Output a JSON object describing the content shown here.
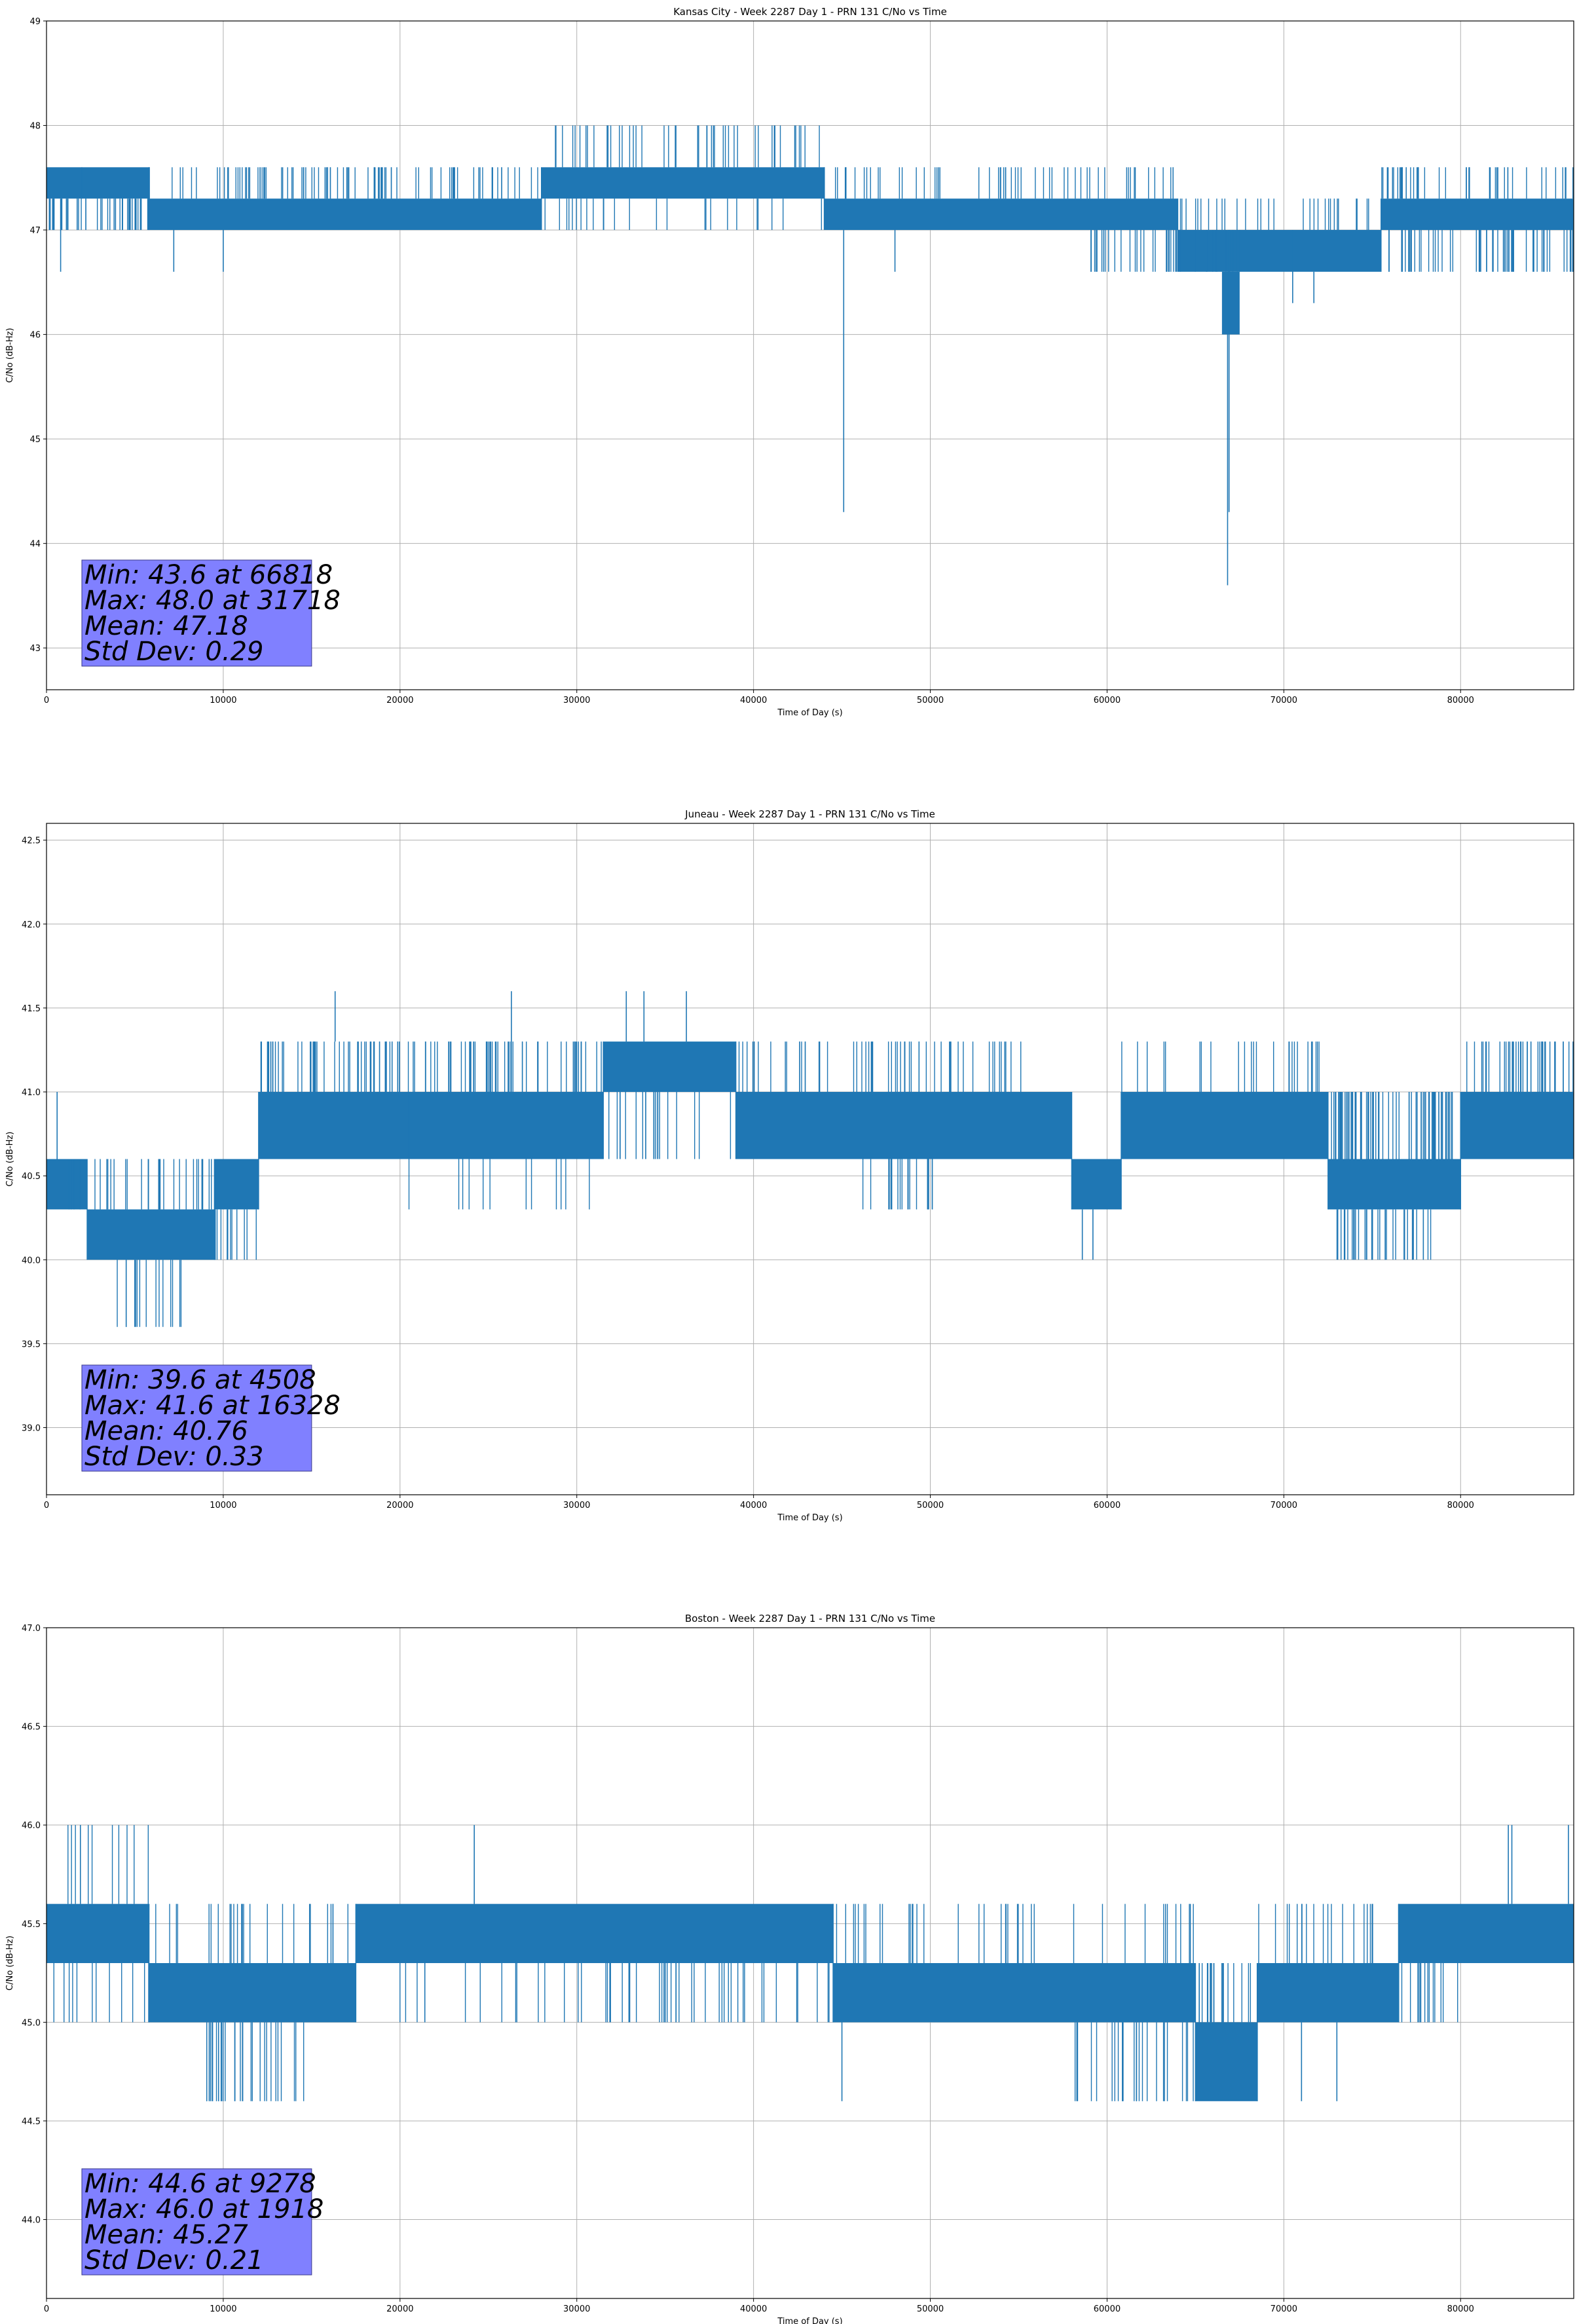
{
  "colors": {
    "series": "#1f77b4",
    "grid": "#b0b0b0",
    "stats_box": "#8080ff"
  },
  "chart_data": [
    {
      "type": "line",
      "title": "Kansas City - Week 2287 Day 1 - PRN 131 C/No vs Time",
      "xlabel": "Time of Day (s)",
      "ylabel": "C/No (dB-Hz)",
      "xlim": [
        0,
        86400
      ],
      "ylim": [
        42.6,
        49.0
      ],
      "xticks": [
        0,
        10000,
        20000,
        30000,
        40000,
        50000,
        60000,
        70000,
        80000
      ],
      "xtick_labels": [
        "0",
        "10000",
        "20000",
        "30000",
        "40000",
        "50000",
        "60000",
        "70000",
        "80000"
      ],
      "yticks": [
        43,
        44,
        45,
        46,
        47,
        48,
        49
      ],
      "ytick_labels": [
        "43",
        "44",
        "45",
        "46",
        "47",
        "48",
        "49"
      ],
      "grid": true,
      "stats_lines": [
        "Min: 43.6 at 66818",
        "Max: 48.0 at 31718",
        "Mean: 47.18",
        "Std Dev: 0.29"
      ],
      "series": [
        {
          "bands": [
            {
              "x": [
                0,
                2000
              ],
              "y": [
                47.3,
                47.6
              ]
            },
            {
              "x": [
                2000,
                5800
              ],
              "y": [
                47.3,
                47.6
              ]
            },
            {
              "x": [
                5800,
                28000
              ],
              "y": [
                47.0,
                47.3
              ]
            },
            {
              "x": [
                28000,
                44000
              ],
              "y": [
                47.3,
                47.6
              ]
            },
            {
              "x": [
                44000,
                64000
              ],
              "y": [
                47.0,
                47.3
              ]
            },
            {
              "x": [
                64000,
                67500
              ],
              "y": [
                46.6,
                47.0
              ]
            },
            {
              "x": [
                67500,
                75500
              ],
              "y": [
                46.6,
                47.0
              ]
            },
            {
              "x": [
                75500,
                86400
              ],
              "y": [
                47.0,
                47.3
              ]
            }
          ],
          "spikes": [
            {
              "x": [
                0,
                5800
              ],
              "from": 47.3,
              "to": 47.0,
              "count": 45
            },
            {
              "x": [
                5800,
                28000
              ],
              "from": 47.3,
              "to": 47.6,
              "count": 90
            },
            {
              "x": [
                28000,
                44000
              ],
              "from": 47.6,
              "to": 48.0,
              "count": 45
            },
            {
              "x": [
                28000,
                44000
              ],
              "from": 47.3,
              "to": 47.0,
              "count": 25
            },
            {
              "x": [
                44000,
                64000
              ],
              "from": 47.3,
              "to": 47.6,
              "count": 55
            },
            {
              "x": [
                59000,
                67500
              ],
              "from": 47.0,
              "to": 46.6,
              "count": 40
            },
            {
              "x": [
                64000,
                75500
              ],
              "from": 47.0,
              "to": 47.3,
              "count": 30
            },
            {
              "x": [
                75500,
                86400
              ],
              "from": 47.0,
              "to": 46.6,
              "count": 55
            },
            {
              "x": [
                75500,
                86400
              ],
              "from": 47.3,
              "to": 47.6,
              "count": 45
            }
          ],
          "points": [
            {
              "x": 800,
              "from": 47.3,
              "to": 46.6
            },
            {
              "x": 7200,
              "from": 47.0,
              "to": 46.6
            },
            {
              "x": 10000,
              "from": 47.0,
              "to": 46.6
            },
            {
              "x": 45100,
              "from": 47.0,
              "to": 44.3
            },
            {
              "x": 48000,
              "from": 47.0,
              "to": 46.6
            },
            {
              "x": 66818,
              "from": 46.6,
              "to": 43.6
            },
            {
              "x": 66900,
              "from": 46.3,
              "to": 44.3
            },
            {
              "x": 70500,
              "from": 47.0,
              "to": 46.3
            },
            {
              "x": 71700,
              "from": 46.6,
              "to": 46.3
            },
            {
              "x": 84100,
              "from": 47.0,
              "to": 46.6
            },
            {
              "x": 31718,
              "from": 47.6,
              "to": 48.0
            }
          ]
        }
      ],
      "extra_bands": [
        {
          "x": [
            66500,
            67500
          ],
          "y": [
            46.0,
            46.6
          ]
        }
      ]
    },
    {
      "type": "line",
      "title": "Juneau - Week 2287 Day 1 - PRN 131 C/No vs Time",
      "xlabel": "Time of Day (s)",
      "ylabel": "C/No (dB-Hz)",
      "xlim": [
        0,
        86400
      ],
      "ylim": [
        38.6,
        42.6
      ],
      "xticks": [
        0,
        10000,
        20000,
        30000,
        40000,
        50000,
        60000,
        70000,
        80000
      ],
      "xtick_labels": [
        "0",
        "10000",
        "20000",
        "30000",
        "40000",
        "50000",
        "60000",
        "70000",
        "80000"
      ],
      "yticks": [
        39.0,
        39.5,
        40.0,
        40.5,
        41.0,
        41.5,
        42.0,
        42.5
      ],
      "ytick_labels": [
        "39.0",
        "39.5",
        "40.0",
        "40.5",
        "41.0",
        "41.5",
        "42.0",
        "42.5"
      ],
      "grid": true,
      "stats_lines": [
        "Min: 39.6 at 4508",
        "Max: 41.6 at 16328",
        "Mean: 40.76",
        "Std Dev: 0.33"
      ],
      "series": [
        {
          "bands": [
            {
              "x": [
                0,
                2300
              ],
              "y": [
                40.3,
                40.6
              ]
            },
            {
              "x": [
                2300,
                9500
              ],
              "y": [
                40.0,
                40.3
              ]
            },
            {
              "x": [
                9500,
                12000
              ],
              "y": [
                40.3,
                40.6
              ]
            },
            {
              "x": [
                12000,
                20500
              ],
              "y": [
                40.6,
                41.0
              ]
            },
            {
              "x": [
                20500,
                26000
              ],
              "y": [
                40.6,
                41.0
              ]
            },
            {
              "x": [
                26000,
                31500
              ],
              "y": [
                40.6,
                41.0
              ]
            },
            {
              "x": [
                31500,
                39000
              ],
              "y": [
                41.0,
                41.3
              ]
            },
            {
              "x": [
                39000,
                58000
              ],
              "y": [
                40.6,
                41.0
              ]
            },
            {
              "x": [
                58000,
                60800
              ],
              "y": [
                40.3,
                40.6
              ]
            },
            {
              "x": [
                60800,
                72500
              ],
              "y": [
                40.6,
                41.0
              ]
            },
            {
              "x": [
                72500,
                80000
              ],
              "y": [
                40.3,
                40.6
              ]
            },
            {
              "x": [
                80000,
                86400
              ],
              "y": [
                40.6,
                41.0
              ]
            }
          ],
          "spikes": [
            {
              "x": [
                0,
                9500
              ],
              "from": 40.3,
              "to": 40.6,
              "count": 30
            },
            {
              "x": [
                4000,
                8000
              ],
              "from": 40.0,
              "to": 39.6,
              "count": 14
            },
            {
              "x": [
                9500,
                12000
              ],
              "from": 40.3,
              "to": 40.0,
              "count": 12
            },
            {
              "x": [
                12000,
                31500
              ],
              "from": 41.0,
              "to": 41.3,
              "count": 110
            },
            {
              "x": [
                20500,
                31500
              ],
              "from": 40.6,
              "to": 40.3,
              "count": 12
            },
            {
              "x": [
                31500,
                39000
              ],
              "from": 41.0,
              "to": 40.6,
              "count": 20
            },
            {
              "x": [
                39000,
                58000
              ],
              "from": 41.0,
              "to": 41.3,
              "count": 55
            },
            {
              "x": [
                46000,
                50500
              ],
              "from": 40.6,
              "to": 40.3,
              "count": 18
            },
            {
              "x": [
                60800,
                72500
              ],
              "from": 41.0,
              "to": 41.3,
              "count": 25
            },
            {
              "x": [
                72500,
                80000
              ],
              "from": 40.6,
              "to": 41.0,
              "count": 70
            },
            {
              "x": [
                73000,
                78500
              ],
              "from": 40.3,
              "to": 40.0,
              "count": 35
            },
            {
              "x": [
                80000,
                86400
              ],
              "from": 41.0,
              "to": 41.3,
              "count": 40
            }
          ],
          "points": [
            {
              "x": 16328,
              "from": 41.3,
              "to": 41.6
            },
            {
              "x": 26300,
              "from": 41.3,
              "to": 41.6
            },
            {
              "x": 32800,
              "from": 41.3,
              "to": 41.6
            },
            {
              "x": 33800,
              "from": 41.3,
              "to": 41.6
            },
            {
              "x": 36200,
              "from": 41.3,
              "to": 41.6
            },
            {
              "x": 58600,
              "from": 40.3,
              "to": 40.0
            },
            {
              "x": 59200,
              "from": 40.3,
              "to": 40.0
            },
            {
              "x": 4508,
              "from": 40.0,
              "to": 39.6
            },
            {
              "x": 12800,
              "from": 41.0,
              "to": 41.3
            },
            {
              "x": 600,
              "from": 40.6,
              "to": 41.0
            }
          ]
        }
      ]
    },
    {
      "type": "line",
      "title": "Boston - Week 2287 Day 1 - PRN 131 C/No vs Time",
      "xlabel": "Time of Day (s)",
      "ylabel": "C/No (dB-Hz)",
      "xlim": [
        0,
        86400
      ],
      "ylim": [
        43.6,
        47.0
      ],
      "xticks": [
        0,
        10000,
        20000,
        30000,
        40000,
        50000,
        60000,
        70000,
        80000
      ],
      "xtick_labels": [
        "0",
        "10000",
        "20000",
        "30000",
        "40000",
        "50000",
        "60000",
        "70000",
        "80000"
      ],
      "yticks": [
        44.0,
        44.5,
        45.0,
        45.5,
        46.0,
        46.5,
        47.0
      ],
      "ytick_labels": [
        "44.0",
        "44.5",
        "45.0",
        "45.5",
        "46.0",
        "46.5",
        "47.0"
      ],
      "grid": true,
      "stats_lines": [
        "Min: 44.6 at 9278",
        "Max: 46.0 at 1918",
        "Mean: 45.27",
        "Std Dev: 0.21"
      ],
      "series": [
        {
          "bands": [
            {
              "x": [
                0,
                5800
              ],
              "y": [
                45.3,
                45.6
              ]
            },
            {
              "x": [
                5800,
                17500
              ],
              "y": [
                45.0,
                45.3
              ]
            },
            {
              "x": [
                17500,
                44500
              ],
              "y": [
                45.3,
                45.6
              ]
            },
            {
              "x": [
                44500,
                65000
              ],
              "y": [
                45.0,
                45.3
              ]
            },
            {
              "x": [
                65000,
                68500
              ],
              "y": [
                44.6,
                45.0
              ]
            },
            {
              "x": [
                68500,
                76500
              ],
              "y": [
                45.0,
                45.3
              ]
            },
            {
              "x": [
                76500,
                86400
              ],
              "y": [
                45.3,
                45.6
              ]
            }
          ],
          "spikes": [
            {
              "x": [
                0,
                5800
              ],
              "from": 45.6,
              "to": 46.0,
              "count": 10
            },
            {
              "x": [
                0,
                5800
              ],
              "from": 45.3,
              "to": 45.0,
              "count": 12
            },
            {
              "x": [
                5800,
                17500
              ],
              "from": 45.3,
              "to": 45.6,
              "count": 25
            },
            {
              "x": [
                9000,
                14800
              ],
              "from": 45.0,
              "to": 44.6,
              "count": 30
            },
            {
              "x": [
                17500,
                44500
              ],
              "from": 45.3,
              "to": 45.0,
              "count": 50
            },
            {
              "x": [
                44500,
                65000
              ],
              "from": 45.3,
              "to": 45.6,
              "count": 40
            },
            {
              "x": [
                58000,
                65000
              ],
              "from": 45.0,
              "to": 44.6,
              "count": 25
            },
            {
              "x": [
                65000,
                68500
              ],
              "from": 45.0,
              "to": 45.3,
              "count": 20
            },
            {
              "x": [
                66000,
                71000
              ],
              "from": 44.6,
              "to": 44.6,
              "count": 1
            },
            {
              "x": [
                68500,
                76500
              ],
              "from": 45.3,
              "to": 45.6,
              "count": 20
            },
            {
              "x": [
                76500,
                80000
              ],
              "from": 45.3,
              "to": 45.0,
              "count": 14
            },
            {
              "x": [
                76500,
                86400
              ],
              "from": 45.6,
              "to": 45.6,
              "count": 1
            }
          ],
          "points": [
            {
              "x": 1918,
              "from": 45.6,
              "to": 46.0
            },
            {
              "x": 24200,
              "from": 45.6,
              "to": 46.0
            },
            {
              "x": 9278,
              "from": 45.0,
              "to": 44.6
            },
            {
              "x": 35000,
              "from": 45.3,
              "to": 45.0
            },
            {
              "x": 45000,
              "from": 45.0,
              "to": 44.6
            },
            {
              "x": 73000,
              "from": 45.0,
              "to": 44.6
            },
            {
              "x": 82700,
              "from": 45.6,
              "to": 46.0
            },
            {
              "x": 82900,
              "from": 45.6,
              "to": 46.0
            },
            {
              "x": 86100,
              "from": 45.6,
              "to": 46.0
            },
            {
              "x": 71000,
              "from": 45.0,
              "to": 44.6
            }
          ]
        }
      ]
    }
  ]
}
